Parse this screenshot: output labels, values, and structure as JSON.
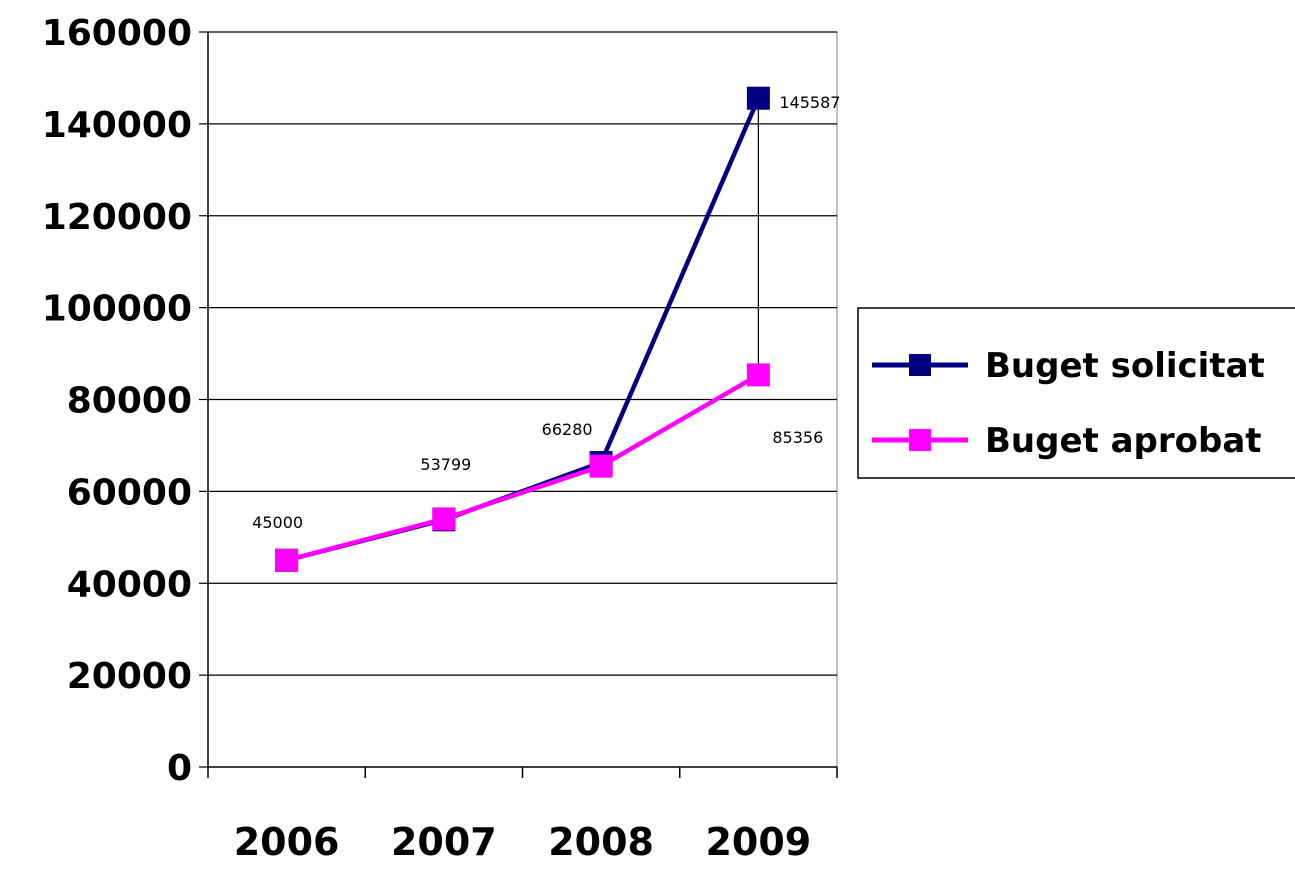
{
  "chart_data": {
    "type": "line",
    "categories": [
      "2006",
      "2007",
      "2008",
      "2009"
    ],
    "ylim": [
      0,
      160000
    ],
    "yticks": [
      0,
      20000,
      40000,
      60000,
      80000,
      100000,
      120000,
      140000,
      160000
    ],
    "grid": true,
    "legend_position": "right",
    "series": [
      {
        "name": "Buget solicitat",
        "values": [
          45000,
          53799,
          66280,
          145587
        ],
        "color": "#000080",
        "marker": "square"
      },
      {
        "name": "Buget aprobat",
        "values": [
          45000,
          54000,
          65500,
          85356
        ],
        "color": "#FF00FF",
        "marker": "square"
      }
    ],
    "data_labels": [
      "45000",
      "53799",
      "66280",
      "145587",
      "85356"
    ],
    "drop_line_color": "#000000"
  }
}
